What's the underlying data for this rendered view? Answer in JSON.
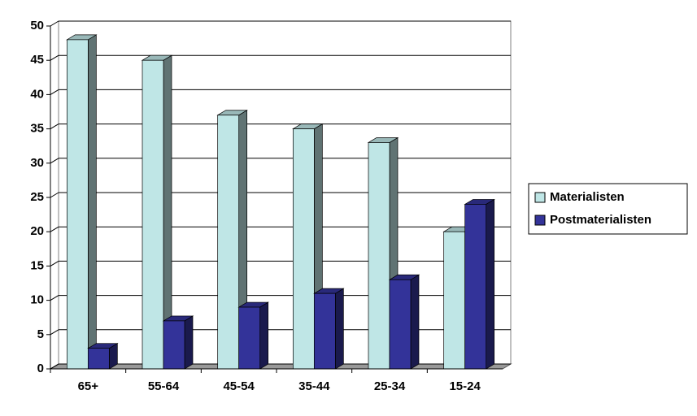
{
  "chart_data": {
    "type": "bar3d",
    "categories": [
      "65+",
      "55-64",
      "45-54",
      "35-44",
      "25-34",
      "15-24"
    ],
    "series": [
      {
        "name": "Materialisten",
        "color": "#bfe6e6",
        "values": [
          48,
          45,
          37,
          35,
          33,
          20
        ]
      },
      {
        "name": "Postmaterialisten",
        "color": "#333399",
        "values": [
          3,
          7,
          9,
          11,
          13,
          24
        ]
      }
    ],
    "ylim": [
      0,
      50
    ],
    "yticks": [
      0,
      5,
      10,
      15,
      20,
      25,
      30,
      35,
      40,
      45,
      50
    ],
    "grid": true,
    "legend": "right"
  }
}
